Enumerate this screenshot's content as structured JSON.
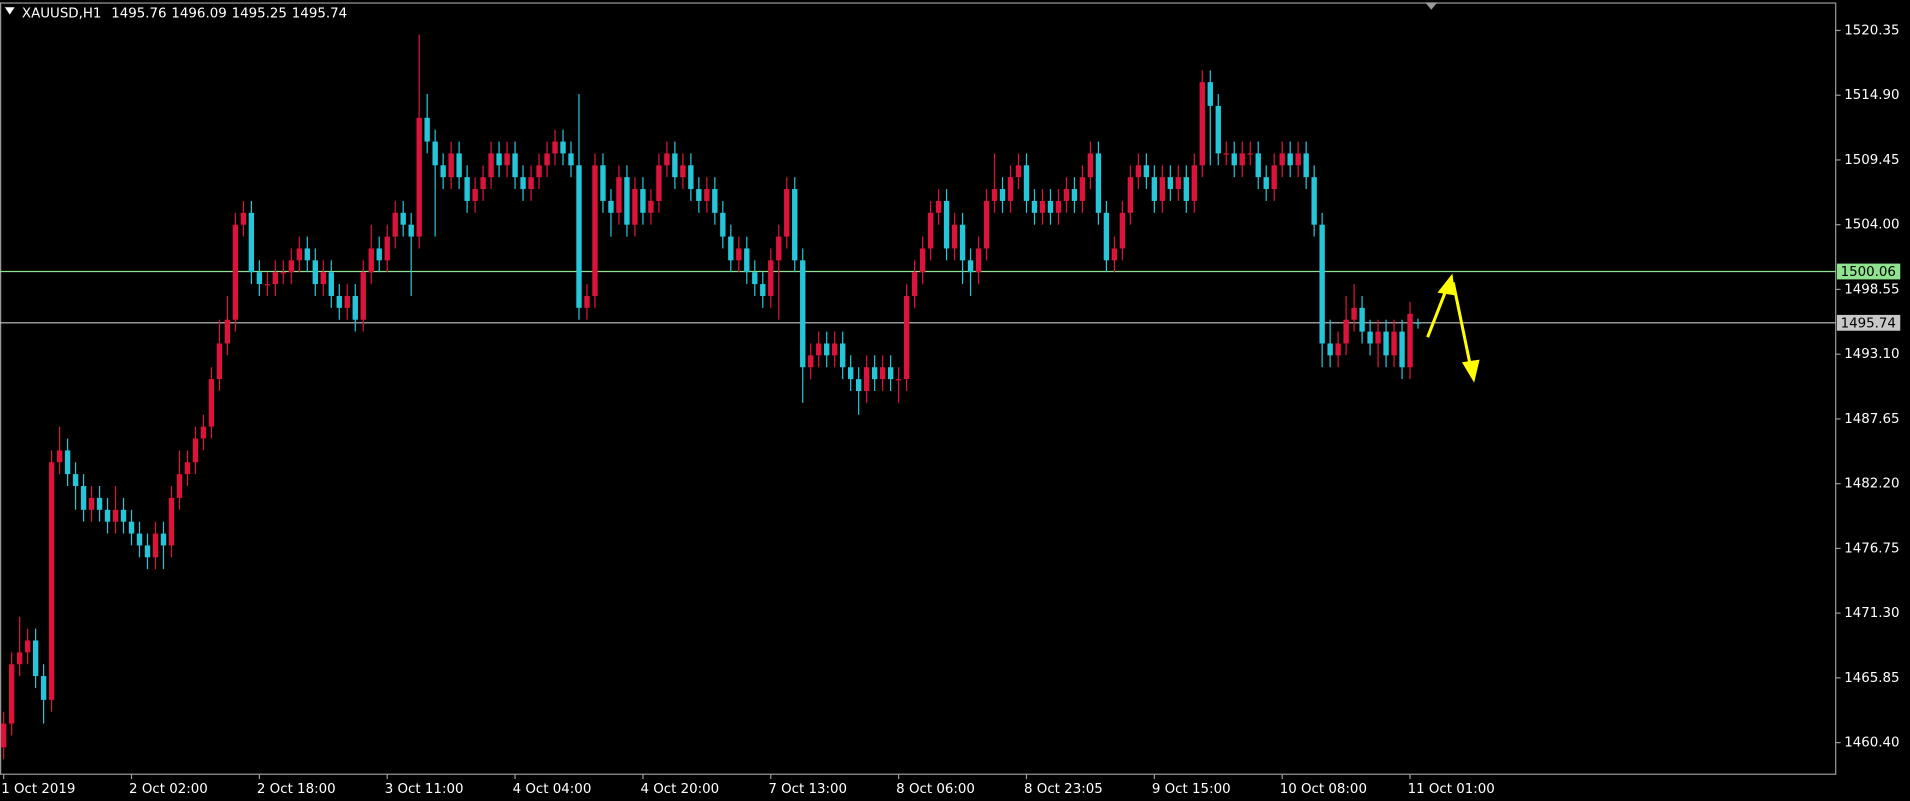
{
  "chart_data": {
    "type": "candlestick",
    "title": "XAUUSD,H1",
    "up_color": "#dc143c",
    "down_color": "#26c6da",
    "categories": [
      "1 Oct 2019",
      null,
      null,
      null,
      null,
      null,
      null,
      null,
      null,
      null,
      null,
      null,
      null,
      null,
      null,
      null,
      "2 Oct 02:00",
      null,
      null,
      null,
      null,
      null,
      null,
      null,
      null,
      null,
      null,
      null,
      null,
      null,
      null,
      null,
      "2 Oct 18:00",
      null,
      null,
      null,
      null,
      null,
      null,
      null,
      null,
      null,
      null,
      null,
      null,
      null,
      null,
      null,
      "3 Oct 11:00",
      null,
      null,
      null,
      null,
      null,
      null,
      null,
      null,
      null,
      null,
      null,
      null,
      null,
      null,
      null,
      "4 Oct 04:00",
      null,
      null,
      null,
      null,
      null,
      null,
      null,
      null,
      null,
      null,
      null,
      null,
      null,
      null,
      null,
      "4 Oct 20:00",
      null,
      null,
      null,
      null,
      null,
      null,
      null,
      null,
      null,
      null,
      null,
      null,
      null,
      null,
      null,
      "7 Oct 13:00",
      null,
      null,
      null,
      null,
      null,
      null,
      null,
      null,
      null,
      null,
      null,
      null,
      null,
      null,
      null,
      "8 Oct 06:00",
      null,
      null,
      null,
      null,
      null,
      null,
      null,
      null,
      null,
      null,
      null,
      null,
      null,
      null,
      null,
      "8 Oct 23:05",
      null,
      null,
      null,
      null,
      null,
      null,
      null,
      null,
      null,
      null,
      null,
      null,
      null,
      null,
      null,
      "9 Oct 15:00",
      null,
      null,
      null,
      null,
      null,
      null,
      null,
      null,
      null,
      null,
      null,
      null,
      null,
      null,
      null,
      "10 Oct 08:00",
      null,
      null,
      null,
      null,
      null,
      null,
      null,
      null,
      null,
      null,
      null,
      null,
      null,
      null,
      null,
      "11 Oct 01:00",
      null
    ],
    "open": [
      1460,
      1462,
      1467,
      1468,
      1469,
      1466,
      1464,
      1484,
      1485,
      1483,
      1482,
      1480,
      1481,
      1480,
      1479,
      1480,
      1479,
      1478,
      1477,
      1476,
      1478,
      1477,
      1481,
      1483,
      1484,
      1486,
      1487,
      1491,
      1494,
      1496,
      1504,
      1505,
      1500,
      1499,
      1499,
      1500,
      1500,
      1501,
      1502,
      1501,
      1499,
      1500,
      1498,
      1497,
      1498,
      1496,
      1500,
      1502,
      1501,
      1503,
      1505,
      1504,
      1503,
      1513,
      1511,
      1509,
      1508,
      1510,
      1508,
      1506,
      1507,
      1508,
      1510,
      1509,
      1510,
      1508,
      1507,
      1508,
      1509,
      1510,
      1511,
      1510,
      1509,
      1497,
      1498,
      1509,
      1506,
      1505,
      1508,
      1504,
      1507,
      1505,
      1506,
      1509,
      1510,
      1508,
      1509,
      1507,
      1506,
      1507,
      1505,
      1503,
      1501,
      1502,
      1500,
      1499,
      1498,
      1501,
      1503,
      1507,
      1501,
      1492,
      1493,
      1494,
      1493,
      1494,
      1492,
      1491,
      1490,
      1492,
      1491,
      1492,
      1491,
      1491,
      1498,
      1500,
      1502,
      1505,
      1506,
      1502,
      1504,
      1501,
      1500,
      1502,
      1506,
      1507,
      1506,
      1508,
      1509,
      1506,
      1505,
      1506,
      1505,
      1506,
      1507,
      1506,
      1508,
      1510,
      1505,
      1501,
      1502,
      1505,
      1508,
      1509,
      1508,
      1506,
      1508,
      1507,
      1508,
      1506,
      1509,
      1516,
      1514,
      1510,
      1510,
      1509,
      1510,
      1510,
      1508,
      1507,
      1509,
      1510,
      1509,
      1510,
      1508,
      1504,
      1494,
      1493,
      1494,
      1496,
      1497,
      1495,
      1494,
      1495,
      1493,
      1495,
      1492,
      1495.76
    ],
    "high": [
      1463,
      1468,
      1471,
      1470,
      1470,
      1467,
      1485,
      1487,
      1486,
      1484,
      1483,
      1482,
      1482,
      1481,
      1482,
      1481,
      1480,
      1479,
      1478,
      1479,
      1479,
      1482,
      1485,
      1485,
      1487,
      1488,
      1492,
      1496,
      1498,
      1505,
      1506,
      1506,
      1501,
      1500,
      1501,
      1501,
      1502,
      1503,
      1503,
      1502,
      1501,
      1501,
      1499,
      1499,
      1499,
      1501,
      1504,
      1503,
      1504,
      1506,
      1506,
      1505,
      1520,
      1515,
      1512,
      1510,
      1511,
      1511,
      1509,
      1508,
      1509,
      1511,
      1511,
      1511,
      1511,
      1509,
      1509,
      1510,
      1511,
      1512,
      1512,
      1511,
      1515,
      1499,
      1510,
      1510,
      1507,
      1509,
      1509,
      1508,
      1508,
      1507,
      1510,
      1511,
      1511,
      1510,
      1510,
      1508,
      1508,
      1508,
      1506,
      1504,
      1503,
      1503,
      1501,
      1500,
      1502,
      1504,
      1508,
      1508,
      1502,
      1494,
      1495,
      1495,
      1495,
      1495,
      1493,
      1492,
      1493,
      1493,
      1493,
      1493,
      1492,
      1499,
      1501,
      1503,
      1506,
      1507,
      1507,
      1505,
      1505,
      1502,
      1503,
      1507,
      1510,
      1508,
      1509,
      1510,
      1510,
      1507,
      1507,
      1507,
      1507,
      1508,
      1508,
      1509,
      1511,
      1511,
      1506,
      1503,
      1506,
      1509,
      1510,
      1510,
      1509,
      1509,
      1509,
      1509,
      1509,
      1510,
      1517,
      1517,
      1515,
      1511,
      1511,
      1511,
      1511,
      1511,
      1509,
      1510,
      1511,
      1511,
      1511,
      1511,
      1509,
      1505,
      1496,
      1495,
      1498,
      1499,
      1498,
      1496,
      1496,
      1496,
      1496,
      1496,
      1497.5,
      1496.09
    ],
    "low": [
      1459,
      1461,
      1466,
      1467,
      1465,
      1462,
      1463,
      1483,
      1482,
      1480,
      1479,
      1479,
      1479,
      1478,
      1478,
      1478,
      1477,
      1476,
      1475,
      1475,
      1475,
      1476,
      1480,
      1482,
      1483,
      1485,
      1486,
      1490,
      1493,
      1495,
      1503,
      1499,
      1498,
      1498,
      1498,
      1499,
      1499,
      1500,
      1500,
      1498,
      1498,
      1497,
      1496,
      1496,
      1495,
      1495,
      1499,
      1500,
      1500,
      1502,
      1503,
      1498,
      1502,
      1510,
      1503,
      1507,
      1507,
      1507,
      1505,
      1505,
      1506,
      1507,
      1508,
      1508,
      1507,
      1506,
      1506,
      1507,
      1508,
      1509,
      1509,
      1508,
      1496,
      1496,
      1497,
      1505,
      1503,
      1504,
      1503,
      1503,
      1504,
      1504,
      1505,
      1508,
      1507,
      1507,
      1506,
      1505,
      1505,
      1504,
      1502,
      1500,
      1500,
      1499,
      1498,
      1497,
      1497,
      1496,
      1502,
      1500,
      1489,
      1491,
      1492,
      1492,
      1492,
      1491,
      1490,
      1488,
      1489,
      1490,
      1490,
      1490,
      1489,
      1490,
      1497,
      1499,
      1501,
      1504,
      1501,
      1501,
      1499,
      1498,
      1499,
      1501,
      1505,
      1505,
      1505,
      1507,
      1505,
      1504,
      1504,
      1504,
      1504,
      1505,
      1505,
      1505,
      1507,
      1504,
      1500,
      1500,
      1501,
      1504,
      1507,
      1507,
      1505,
      1505,
      1506,
      1506,
      1505,
      1505,
      1508,
      1509,
      1509,
      1509,
      1508,
      1508,
      1509,
      1507,
      1506,
      1506,
      1508,
      1508,
      1508,
      1507,
      1503,
      1492,
      1492,
      1492,
      1493,
      1495,
      1494,
      1493,
      1492,
      1492,
      1492,
      1491,
      1491,
      1495.25
    ],
    "close": [
      1462,
      1467,
      1468,
      1469,
      1466,
      1464,
      1484,
      1485,
      1483,
      1482,
      1480,
      1481,
      1480,
      1479,
      1480,
      1479,
      1478,
      1477,
      1476,
      1478,
      1477,
      1481,
      1483,
      1484,
      1486,
      1487,
      1491,
      1494,
      1496,
      1504,
      1505,
      1500,
      1499,
      1499,
      1500,
      1500,
      1501,
      1502,
      1501,
      1499,
      1500,
      1498,
      1497,
      1498,
      1496,
      1500,
      1502,
      1501,
      1503,
      1505,
      1504,
      1503,
      1513,
      1511,
      1509,
      1508,
      1510,
      1508,
      1506,
      1507,
      1508,
      1510,
      1509,
      1510,
      1508,
      1507,
      1508,
      1509,
      1510,
      1511,
      1510,
      1509,
      1497,
      1498,
      1509,
      1506,
      1505,
      1508,
      1504,
      1507,
      1505,
      1506,
      1509,
      1510,
      1508,
      1509,
      1507,
      1506,
      1507,
      1505,
      1503,
      1501,
      1502,
      1500,
      1499,
      1498,
      1501,
      1503,
      1507,
      1501,
      1492,
      1493,
      1494,
      1493,
      1494,
      1492,
      1491,
      1490,
      1492,
      1491,
      1492,
      1491,
      1491,
      1498,
      1500,
      1502,
      1505,
      1506,
      1502,
      1504,
      1501,
      1500,
      1502,
      1506,
      1507,
      1506,
      1508,
      1509,
      1506,
      1505,
      1506,
      1505,
      1506,
      1507,
      1506,
      1508,
      1510,
      1505,
      1501,
      1502,
      1505,
      1508,
      1509,
      1508,
      1506,
      1508,
      1507,
      1508,
      1506,
      1509,
      1516,
      1514,
      1510,
      1510,
      1509,
      1510,
      1510,
      1508,
      1507,
      1509,
      1510,
      1509,
      1510,
      1508,
      1504,
      1494,
      1493,
      1494,
      1496,
      1497,
      1495,
      1494,
      1495,
      1493,
      1495,
      1492,
      1496.5,
      1495.74
    ],
    "ylim": [
      1457.74,
      1522.71
    ],
    "yticks": [
      1520.35,
      {
        "value": 1514.9,
        "label": "1514.90"
      },
      1509.45,
      {
        "value": 1504,
        "label": "1504.00"
      },
      1498.55,
      {
        "value": 1493.1,
        "label": "1493.10"
      },
      1487.65,
      {
        "value": 1482.2,
        "label": "1482.20"
      },
      1476.75,
      {
        "value": 1471.3,
        "label": "1471.30"
      },
      1465.85,
      {
        "value": 1460.4,
        "label": "1460.40"
      }
    ],
    "price_lines": [
      1500.06,
      1495.74
    ],
    "price_line_colors": [
      "#8fe38f",
      "#c8c8c8"
    ]
  }
}
